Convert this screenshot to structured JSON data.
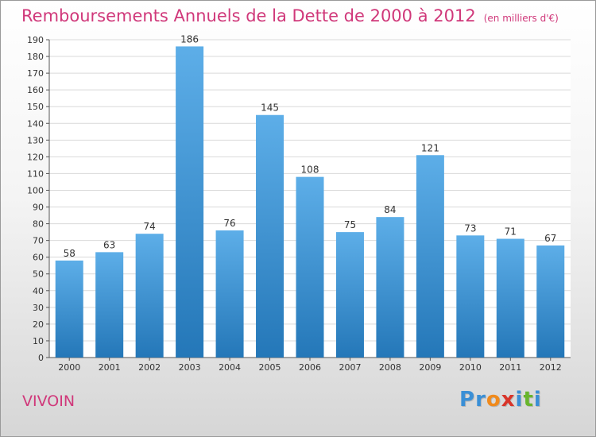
{
  "header": {
    "title": "Remboursements Annuels de la Dette de 2000 à 2012",
    "subtitle": "(en milliers d'€)"
  },
  "footer": {
    "commune": "VIVOIN",
    "logo": {
      "letters": [
        "P",
        "r",
        "o",
        "x",
        "i",
        "t",
        "i"
      ]
    }
  },
  "colors": {
    "title": "#d0387a",
    "bar_top": "#5daee8",
    "bar_bottom": "#2477b8",
    "logo": [
      "#3a8fd6",
      "#3a8fd6",
      "#f08a1c",
      "#d8352a",
      "#3a8fd6",
      "#68b52c",
      "#3a8fd6"
    ]
  },
  "chart_data": {
    "type": "bar",
    "categories": [
      "2000",
      "2001",
      "2002",
      "2003",
      "2004",
      "2005",
      "2006",
      "2007",
      "2008",
      "2009",
      "2010",
      "2011",
      "2012"
    ],
    "values": [
      58,
      63,
      74,
      186,
      76,
      145,
      108,
      75,
      84,
      121,
      73,
      71,
      67
    ],
    "title": "Remboursements Annuels de la Dette de 2000 à 2012",
    "xlabel": "",
    "ylabel": "",
    "ylim": [
      0,
      190
    ],
    "ytick_step": 10,
    "grid": true
  }
}
